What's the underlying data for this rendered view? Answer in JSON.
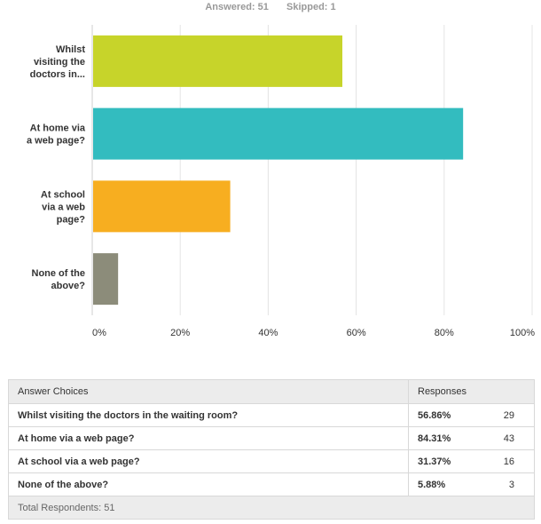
{
  "summary": {
    "answered": "Answered: 51",
    "skipped": "Skipped: 1"
  },
  "chart_data": {
    "type": "bar",
    "orientation": "horizontal",
    "categories": [
      [
        "Whilst",
        "visiting the",
        "doctors in..."
      ],
      [
        "At home via",
        "a web page?"
      ],
      [
        "At school",
        "via a web",
        "page?"
      ],
      [
        "None of the",
        "above?"
      ]
    ],
    "values": [
      56.86,
      84.31,
      31.37,
      5.88
    ],
    "colors": [
      "#c7d42a",
      "#33bcbf",
      "#f7ae20",
      "#8c8c7a"
    ],
    "xlim": [
      0,
      100
    ],
    "ticks": [
      "0%",
      "20%",
      "40%",
      "60%",
      "80%",
      "100%"
    ],
    "grid": true,
    "title": "",
    "xlabel": "",
    "ylabel": ""
  },
  "table": {
    "header_choices": "Answer Choices",
    "header_responses": "Responses",
    "rows": [
      {
        "choice": "Whilst visiting the doctors in the waiting room?",
        "pct": "56.86%",
        "count": "29"
      },
      {
        "choice": "At home via a web page?",
        "pct": "84.31%",
        "count": "43"
      },
      {
        "choice": "At school via a web page?",
        "pct": "31.37%",
        "count": "16"
      },
      {
        "choice": "None of the above?",
        "pct": "5.88%",
        "count": "3"
      }
    ],
    "total": "Total Respondents: 51"
  }
}
